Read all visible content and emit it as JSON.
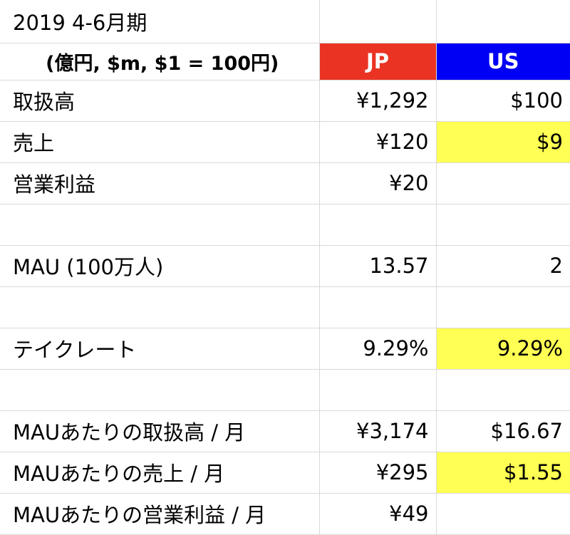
{
  "title": "2019 4-6月期",
  "header": {
    "units": "(億円, $m, $1 = 100円)",
    "jp": "JP",
    "us": "US"
  },
  "colors": {
    "jp_header": "#ea3323",
    "us_header": "#0000f5",
    "highlight": "#ffff54",
    "gridline": "#d9d9d9"
  },
  "rows": [
    {
      "label": "取扱高",
      "jp": "¥1,292",
      "us": "$100",
      "us_highlight": false
    },
    {
      "label": "売上",
      "jp": "¥120",
      "us": "$9",
      "us_highlight": true
    },
    {
      "label": "営業利益",
      "jp": "¥20",
      "us": "",
      "us_highlight": false
    },
    {
      "label": "",
      "jp": "",
      "us": "",
      "us_highlight": false
    },
    {
      "label": "MAU (100万人)",
      "jp": "13.57",
      "us": "2",
      "us_highlight": false
    },
    {
      "label": "",
      "jp": "",
      "us": "",
      "us_highlight": false
    },
    {
      "label": "テイクレート",
      "jp": "9.29%",
      "us": "9.29%",
      "us_highlight": true
    },
    {
      "label": "",
      "jp": "",
      "us": "",
      "us_highlight": false
    },
    {
      "label": "MAUあたりの取扱高 / 月",
      "jp": "¥3,174",
      "us": "$16.67",
      "us_highlight": false
    },
    {
      "label": "MAUあたりの売上 / 月",
      "jp": "¥295",
      "us": "$1.55",
      "us_highlight": true
    },
    {
      "label": "MAUあたりの営業利益 / 月",
      "jp": "¥49",
      "us": "",
      "us_highlight": false
    }
  ]
}
